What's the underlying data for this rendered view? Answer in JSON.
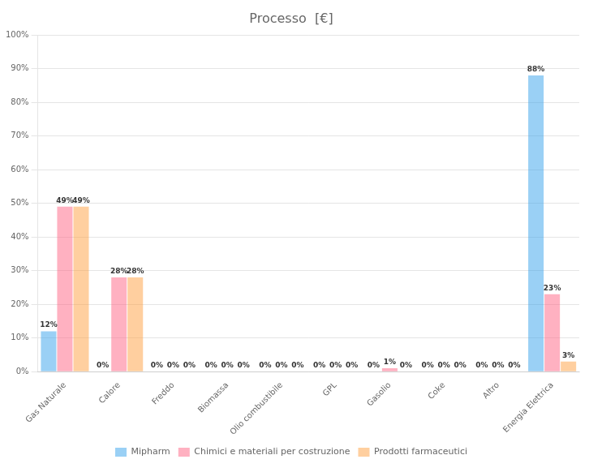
{
  "chart_data": {
    "type": "bar",
    "title": "Processo  [€]",
    "categories": [
      "Gas Naturale",
      "Calore",
      "Freddo",
      "Biomassa",
      "Olio combustibile",
      "GPL",
      "Gasolio",
      "Coke",
      "Altro",
      "Energia Elettrica"
    ],
    "series": [
      {
        "name": "Mipharm",
        "values": [
          12,
          0,
          0,
          0,
          0,
          0,
          0,
          0,
          0,
          88
        ],
        "value_labels": [
          "12%",
          "0%",
          "0%",
          "0%",
          "0%",
          "0%",
          "0%",
          "0%",
          "0%",
          "88%"
        ]
      },
      {
        "name": "Chimici e materiali per costruzione",
        "values": [
          49,
          28,
          0,
          0,
          0,
          0,
          1,
          0,
          0,
          23
        ],
        "value_labels": [
          "49%",
          "28%",
          "0%",
          "0%",
          "0%",
          "0%",
          "1%",
          "0%",
          "0%",
          "23%"
        ]
      },
      {
        "name": "Prodotti farmaceutici",
        "values": [
          49,
          28,
          0,
          0,
          0,
          0,
          0,
          0,
          0,
          3
        ],
        "value_labels": [
          "49%",
          "28%",
          "0%",
          "0%",
          "0%",
          "0%",
          "0%",
          "0%",
          "0%",
          "3%"
        ]
      }
    ],
    "ylim": [
      0,
      100
    ],
    "yticks": [
      {
        "value": 0,
        "label": "0%"
      },
      {
        "value": 10,
        "label": "10%"
      },
      {
        "value": 20,
        "label": "20%"
      },
      {
        "value": 30,
        "label": "30%"
      },
      {
        "value": 40,
        "label": "40%"
      },
      {
        "value": 50,
        "label": "50%"
      },
      {
        "value": 60,
        "label": "60%"
      },
      {
        "value": 70,
        "label": "70%"
      },
      {
        "value": 80,
        "label": "80%"
      },
      {
        "value": 90,
        "label": "90%"
      },
      {
        "value": 100,
        "label": "100%"
      }
    ],
    "grid": true,
    "legend": "bottom",
    "data_labels": true
  }
}
